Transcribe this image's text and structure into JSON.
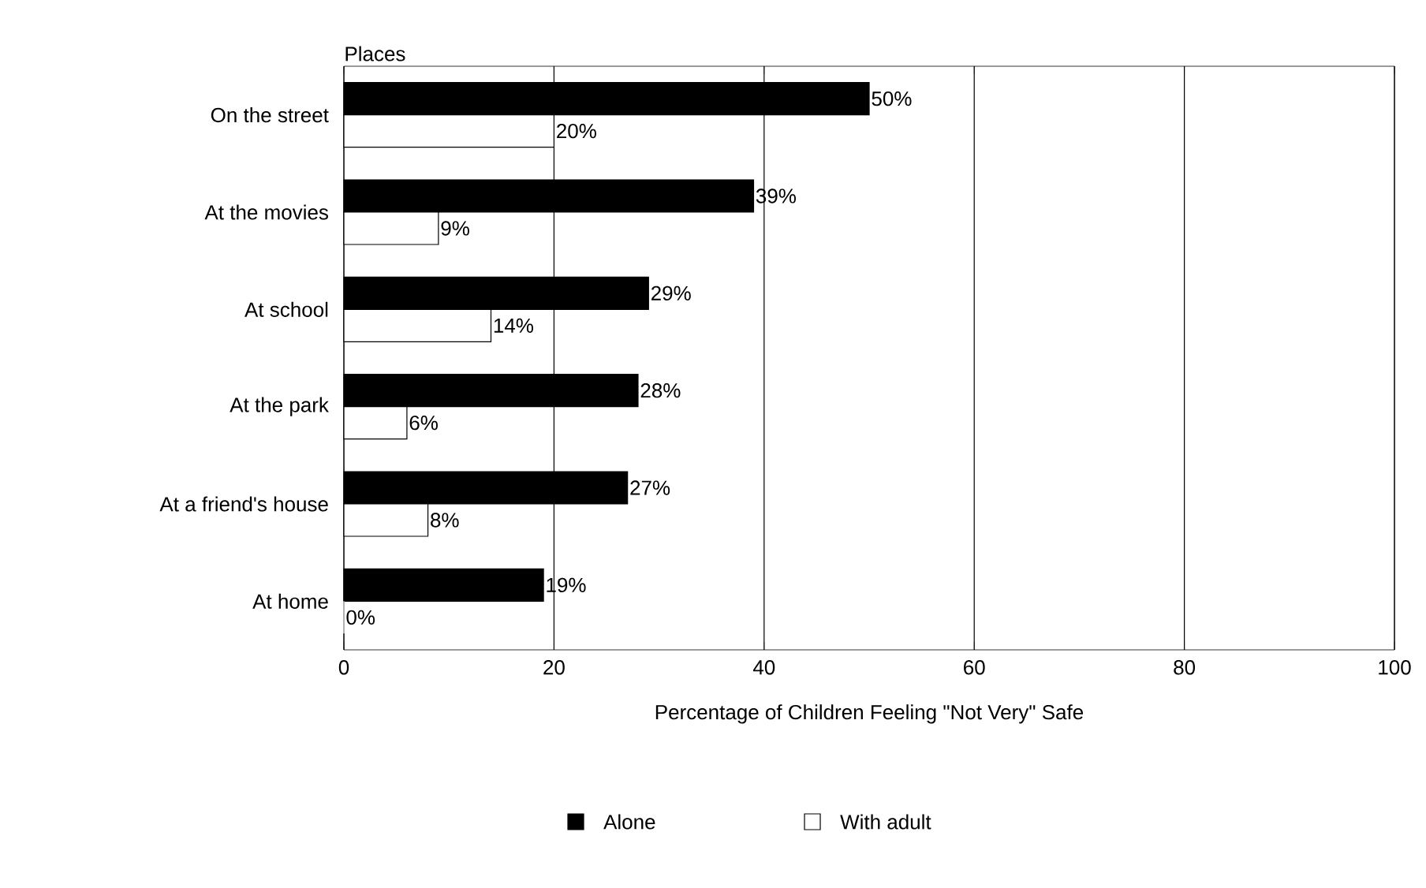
{
  "chart_data": {
    "type": "bar",
    "orientation": "horizontal",
    "ylabel": "Places",
    "xlabel": "Percentage of Children Feeling \"Not Very\" Safe",
    "categories": [
      "On the street",
      "At the movies",
      "At school",
      "At the park",
      "At a friend's house",
      "At home"
    ],
    "series": [
      {
        "name": "Alone",
        "color": "#000000",
        "values": [
          50,
          39,
          29,
          28,
          27,
          19
        ],
        "value_labels": [
          "50%",
          "39%",
          "29%",
          "28%",
          "27%",
          "19%"
        ]
      },
      {
        "name": "With adult",
        "color": "#ffffff",
        "values": [
          20,
          9,
          14,
          6,
          8,
          0
        ],
        "value_labels": [
          "20%",
          "9%",
          "14%",
          "6%",
          "8%",
          "0%"
        ]
      }
    ],
    "xlim": [
      0,
      100
    ],
    "xticks": [
      0,
      20,
      40,
      60,
      80,
      100
    ],
    "grid": "x",
    "legend": "bottom"
  }
}
